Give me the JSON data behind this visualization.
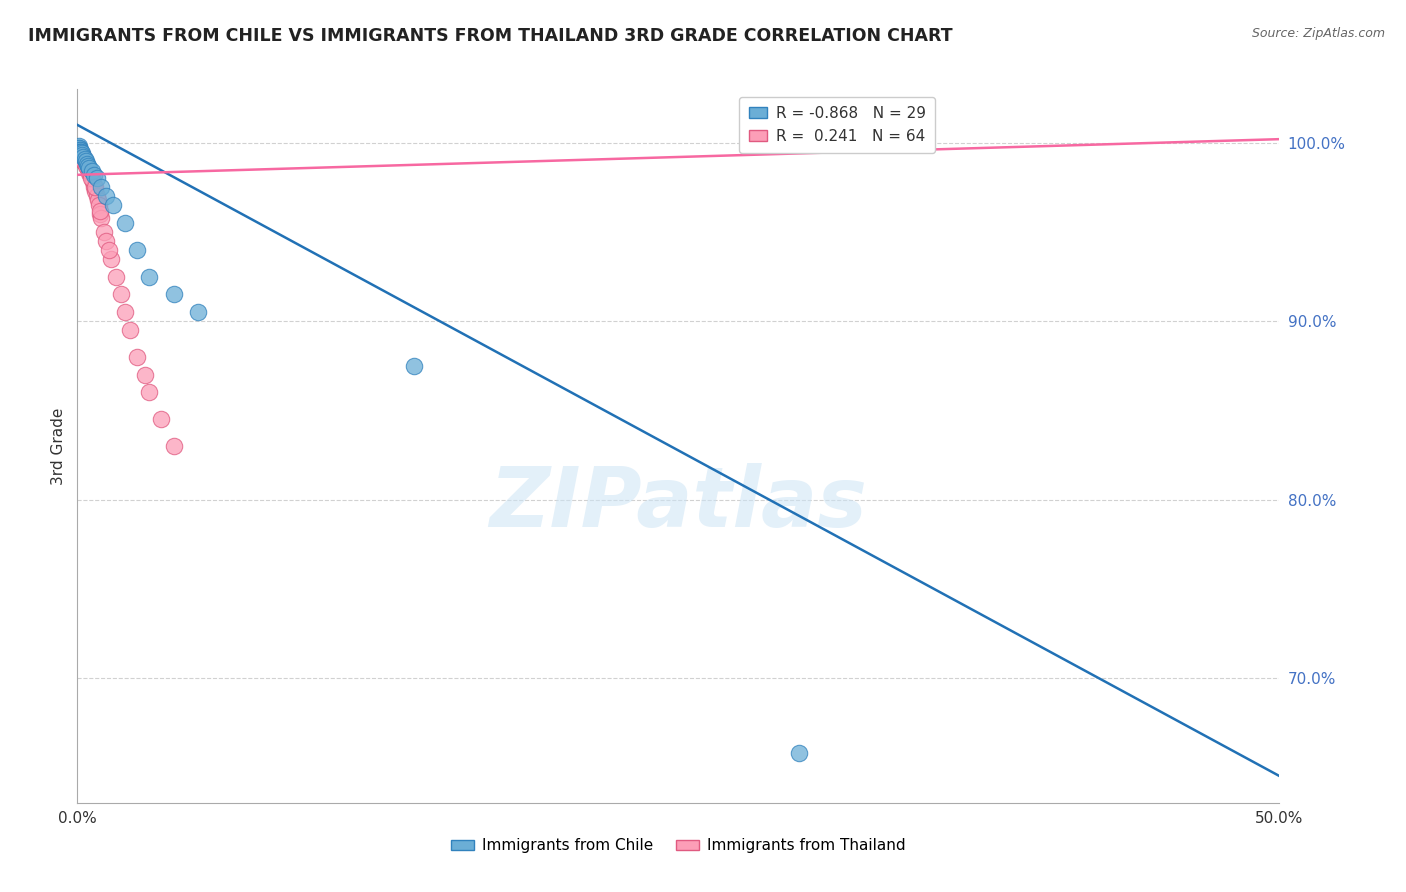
{
  "title": "IMMIGRANTS FROM CHILE VS IMMIGRANTS FROM THAILAND 3RD GRADE CORRELATION CHART",
  "source": "Source: ZipAtlas.com",
  "ylabel": "3rd Grade",
  "xlim": [
    0.0,
    50.0
  ],
  "ylim": [
    63.0,
    103.0
  ],
  "ytick_values": [
    70.0,
    80.0,
    90.0,
    100.0
  ],
  "xtick_values": [
    0.0,
    5.0,
    10.0,
    15.0,
    20.0,
    25.0,
    30.0,
    35.0,
    40.0,
    45.0,
    50.0
  ],
  "chile_color": "#6baed6",
  "chile_edge_color": "#3182bd",
  "thailand_color": "#fc9eb7",
  "thailand_edge_color": "#e05a80",
  "chile_R": -0.868,
  "chile_N": 29,
  "thailand_R": 0.241,
  "thailand_N": 64,
  "chile_line_color": "#2171b5",
  "thailand_line_color": "#f768a1",
  "watermark": "ZIPatlas",
  "background_color": "#ffffff",
  "grid_color": "#cccccc",
  "legend_label_chile": "Immigrants from Chile",
  "legend_label_thailand": "Immigrants from Thailand",
  "chile_scatter_x": [
    0.05,
    0.07,
    0.08,
    0.1,
    0.11,
    0.12,
    0.13,
    0.15,
    0.18,
    0.2,
    0.25,
    0.3,
    0.35,
    0.4,
    0.45,
    0.5,
    0.6,
    0.7,
    0.8,
    1.0,
    1.2,
    1.5,
    2.0,
    2.5,
    3.0,
    4.0,
    5.0,
    14.0,
    30.0
  ],
  "chile_scatter_y": [
    99.8,
    99.7,
    99.7,
    99.6,
    99.6,
    99.5,
    99.5,
    99.5,
    99.4,
    99.3,
    99.2,
    99.1,
    99.0,
    98.8,
    98.7,
    98.6,
    98.4,
    98.2,
    98.0,
    97.5,
    97.0,
    96.5,
    95.5,
    94.0,
    92.5,
    91.5,
    90.5,
    87.5,
    65.8
  ],
  "thailand_scatter_x": [
    0.04,
    0.05,
    0.06,
    0.07,
    0.08,
    0.09,
    0.1,
    0.11,
    0.12,
    0.13,
    0.14,
    0.15,
    0.16,
    0.17,
    0.18,
    0.19,
    0.2,
    0.21,
    0.22,
    0.23,
    0.25,
    0.27,
    0.3,
    0.33,
    0.35,
    0.38,
    0.4,
    0.43,
    0.45,
    0.5,
    0.55,
    0.6,
    0.65,
    0.7,
    0.75,
    0.8,
    0.85,
    0.9,
    0.95,
    1.0,
    1.1,
    1.2,
    1.4,
    1.6,
    1.8,
    2.0,
    2.2,
    2.5,
    2.8,
    3.0,
    3.5,
    4.0,
    0.06,
    0.09,
    0.12,
    0.16,
    0.24,
    0.28,
    0.36,
    0.48,
    0.58,
    0.72,
    0.95,
    1.3
  ],
  "thailand_scatter_y": [
    99.5,
    99.5,
    99.5,
    99.5,
    99.5,
    99.5,
    99.5,
    99.5,
    99.5,
    99.5,
    99.4,
    99.4,
    99.4,
    99.3,
    99.3,
    99.3,
    99.3,
    99.2,
    99.2,
    99.2,
    99.1,
    99.0,
    99.0,
    98.9,
    98.8,
    98.8,
    98.7,
    98.6,
    98.5,
    98.3,
    98.2,
    98.0,
    97.8,
    97.5,
    97.3,
    97.0,
    96.8,
    96.5,
    96.0,
    95.8,
    95.0,
    94.5,
    93.5,
    92.5,
    91.5,
    90.5,
    89.5,
    88.0,
    87.0,
    86.0,
    84.5,
    83.0,
    99.3,
    99.3,
    99.2,
    99.1,
    99.0,
    98.9,
    98.7,
    98.4,
    98.0,
    97.5,
    96.2,
    94.0
  ],
  "chile_trend_x": [
    0.0,
    50.0
  ],
  "chile_trend_y": [
    101.0,
    64.5
  ],
  "thailand_trend_x": [
    0.0,
    50.0
  ],
  "thailand_trend_y": [
    98.2,
    100.2
  ]
}
